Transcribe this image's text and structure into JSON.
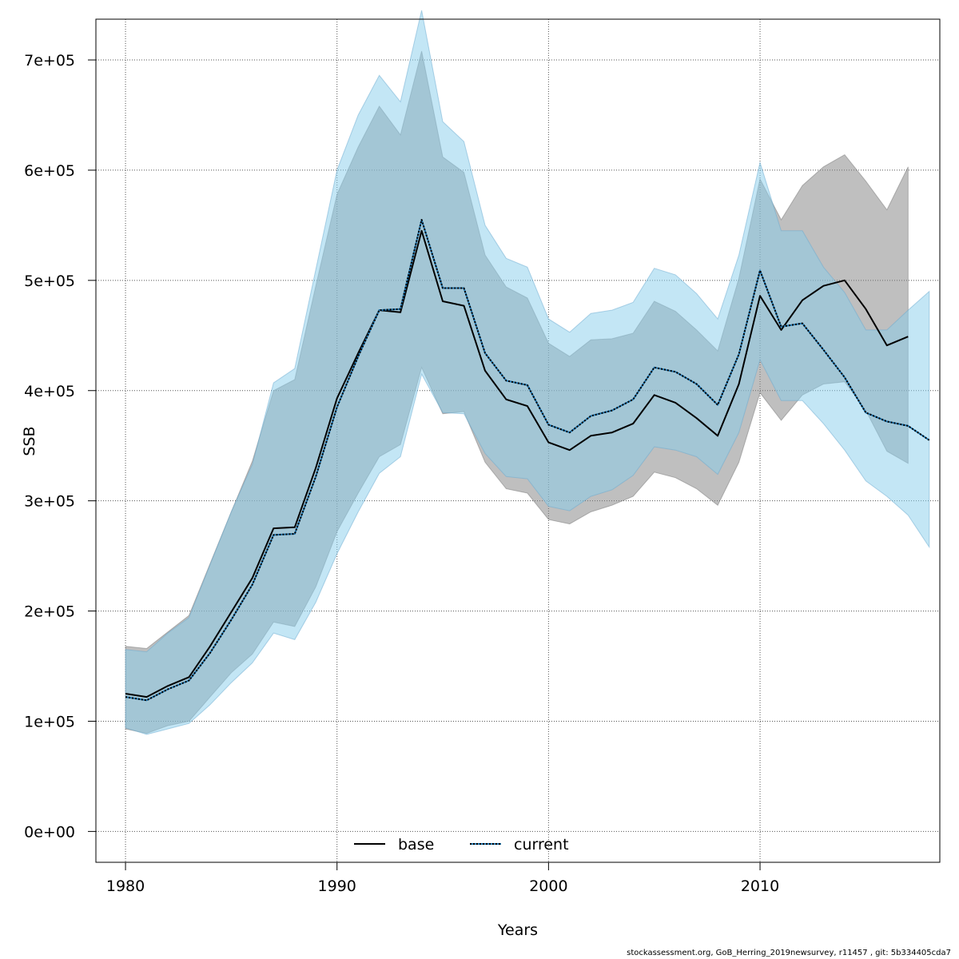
{
  "chart_data": {
    "type": "area",
    "xlabel": "Years",
    "ylabel": "SSB",
    "xlim": [
      1978.6,
      2018.5
    ],
    "ylim": [
      -28000,
      737000
    ],
    "x_ticks": [
      1980,
      1990,
      2000,
      2010
    ],
    "x_tick_labels": [
      "1980",
      "1990",
      "2000",
      "2010"
    ],
    "y_ticks": [
      0,
      100000,
      200000,
      300000,
      400000,
      500000,
      600000,
      700000
    ],
    "y_tick_labels": [
      "0e+00",
      "1e+05",
      "2e+05",
      "3e+05",
      "4e+05",
      "5e+05",
      "6e+05",
      "7e+05"
    ],
    "grid": true,
    "legend_position": "bottom",
    "series": [
      {
        "name": "base",
        "line_style": "solid",
        "line_color": "#000000",
        "band_color": "#808080",
        "x": [
          1980,
          1981,
          1982,
          1983,
          1984,
          1985,
          1986,
          1987,
          1988,
          1989,
          1990,
          1991,
          1992,
          1993,
          1994,
          1995,
          1996,
          1997,
          1998,
          1999,
          2000,
          2001,
          2002,
          2003,
          2004,
          2005,
          2006,
          2007,
          2008,
          2009,
          2010,
          2011,
          2012,
          2013,
          2014,
          2015,
          2016,
          2017
        ],
        "values": [
          125000,
          122000,
          132000,
          140000,
          168000,
          199000,
          230000,
          275000,
          276000,
          330000,
          393000,
          434000,
          473000,
          471000,
          545000,
          481000,
          477000,
          418000,
          392000,
          386000,
          353000,
          346000,
          359000,
          362000,
          370000,
          396000,
          389000,
          375000,
          359000,
          406000,
          486000,
          455000,
          482000,
          495000,
          500000,
          474000,
          441000,
          449000
        ],
        "upper": [
          168000,
          166000,
          181000,
          196000,
          243000,
          290000,
          336000,
          400000,
          410000,
          495000,
          578000,
          621000,
          658000,
          632000,
          708000,
          612000,
          598000,
          523000,
          494000,
          484000,
          443000,
          431000,
          446000,
          447000,
          452000,
          481000,
          472000,
          455000,
          436000,
          502000,
          592000,
          555000,
          586000,
          603000,
          614000,
          590000,
          564000,
          603000
        ],
        "lower": [
          93000,
          89000,
          96000,
          100000,
          122000,
          144000,
          161000,
          190000,
          186000,
          222000,
          272000,
          307000,
          340000,
          351000,
          421000,
          379000,
          381000,
          335000,
          311000,
          307000,
          283000,
          279000,
          290000,
          296000,
          304000,
          326000,
          321000,
          311000,
          296000,
          335000,
          398000,
          373000,
          396000,
          406000,
          408000,
          382000,
          345000,
          334000
        ]
      },
      {
        "name": "current",
        "line_style": "dotted",
        "line_color": "#000000",
        "dot_color": "#1f78b4",
        "band_color": "#87ceeb",
        "x": [
          1980,
          1981,
          1982,
          1983,
          1984,
          1985,
          1986,
          1987,
          1988,
          1989,
          1990,
          1991,
          1992,
          1993,
          1994,
          1995,
          1996,
          1997,
          1998,
          1999,
          2000,
          2001,
          2002,
          2003,
          2004,
          2005,
          2006,
          2007,
          2008,
          2009,
          2010,
          2011,
          2012,
          2013,
          2014,
          2015,
          2016,
          2017,
          2018
        ],
        "values": [
          122000,
          119000,
          129000,
          137000,
          162000,
          192000,
          224000,
          269000,
          270000,
          322000,
          385000,
          431000,
          473000,
          474000,
          555000,
          493000,
          493000,
          434000,
          409000,
          405000,
          369000,
          362000,
          377000,
          382000,
          392000,
          421000,
          417000,
          406000,
          387000,
          433000,
          509000,
          458000,
          461000,
          437000,
          412000,
          380000,
          372000,
          368000,
          355000
        ],
        "upper": [
          165000,
          163000,
          180000,
          194000,
          242000,
          290000,
          333000,
          407000,
          420000,
          510000,
          600000,
          650000,
          686000,
          662000,
          745000,
          644000,
          626000,
          550000,
          520000,
          512000,
          465000,
          453000,
          470000,
          473000,
          480000,
          511000,
          505000,
          488000,
          465000,
          523000,
          607000,
          545000,
          545000,
          512000,
          489000,
          455000,
          455000,
          473000,
          490000
        ],
        "lower": [
          94000,
          88000,
          93000,
          98000,
          115000,
          135000,
          153000,
          180000,
          174000,
          208000,
          252000,
          290000,
          325000,
          340000,
          415000,
          380000,
          379000,
          343000,
          322000,
          320000,
          295000,
          291000,
          304000,
          310000,
          323000,
          349000,
          346000,
          340000,
          324000,
          362000,
          428000,
          391000,
          391000,
          370000,
          346000,
          318000,
          304000,
          287000,
          258000
        ]
      }
    ]
  },
  "footer_text": "stockassessment.org, GoB_Herring_2019newsurvey, r11457 , git: 5b334405cda7"
}
